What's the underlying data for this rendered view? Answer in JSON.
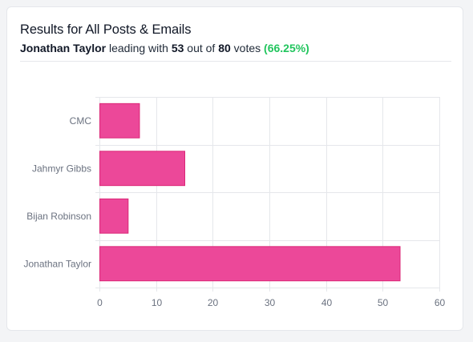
{
  "header": {
    "title": "Results for All Posts & Emails",
    "leader_name": "Jonathan Taylor",
    "text_leading": "leading with",
    "leader_votes": "53",
    "text_out_of": "out of",
    "total_votes": "80",
    "text_votes": "votes",
    "percent": "(66.25%)"
  },
  "colors": {
    "bar": "#ec4899",
    "bar_border": "#db2777",
    "grid": "#e5e7eb",
    "tick_text": "#6b7280",
    "percent_text": "#22c55e"
  },
  "chart_data": {
    "type": "bar",
    "orientation": "horizontal",
    "categories": [
      "CMC",
      "Jahmyr Gibbs",
      "Bijan Robinson",
      "Jonathan Taylor"
    ],
    "values": [
      7,
      15,
      5,
      53
    ],
    "xlim": [
      0,
      60
    ],
    "xticks": [
      0,
      10,
      20,
      30,
      40,
      50,
      60
    ],
    "grid": true,
    "legend": "none"
  }
}
